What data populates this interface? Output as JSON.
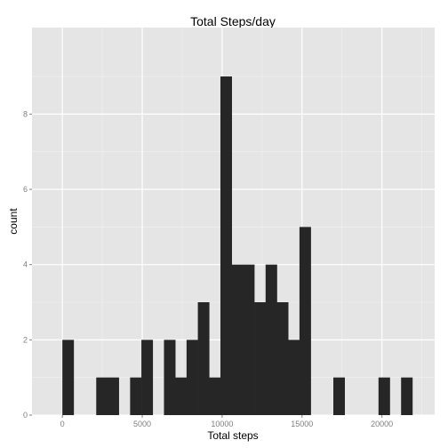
{
  "chart_data": {
    "type": "bar",
    "title": "Total Steps/day",
    "xlabel": "Total steps",
    "ylabel": "count",
    "binwidth": 706.6,
    "bins": [
      {
        "start": 0,
        "count": 2
      },
      {
        "start": 706.6,
        "count": 0
      },
      {
        "start": 1413.2,
        "count": 0
      },
      {
        "start": 2119.8,
        "count": 1
      },
      {
        "start": 2826.4,
        "count": 1
      },
      {
        "start": 3533.0,
        "count": 0
      },
      {
        "start": 4239.6,
        "count": 1
      },
      {
        "start": 4946.2,
        "count": 2
      },
      {
        "start": 5652.8,
        "count": 0
      },
      {
        "start": 6359.4,
        "count": 2
      },
      {
        "start": 7066.0,
        "count": 1
      },
      {
        "start": 7772.6,
        "count": 2
      },
      {
        "start": 8479.2,
        "count": 3
      },
      {
        "start": 9185.8,
        "count": 1
      },
      {
        "start": 9892.4,
        "count": 9
      },
      {
        "start": 10599.0,
        "count": 4
      },
      {
        "start": 11305.6,
        "count": 4
      },
      {
        "start": 12012.2,
        "count": 3
      },
      {
        "start": 12718.8,
        "count": 4
      },
      {
        "start": 13425.4,
        "count": 3
      },
      {
        "start": 14132.0,
        "count": 2
      },
      {
        "start": 14838.6,
        "count": 5
      },
      {
        "start": 15545.2,
        "count": 0
      },
      {
        "start": 16251.8,
        "count": 0
      },
      {
        "start": 16958.4,
        "count": 1
      },
      {
        "start": 17665.0,
        "count": 0
      },
      {
        "start": 18371.6,
        "count": 0
      },
      {
        "start": 19078.2,
        "count": 0
      },
      {
        "start": 19784.8,
        "count": 1
      },
      {
        "start": 20491.4,
        "count": 0
      },
      {
        "start": 21198.0,
        "count": 1
      }
    ],
    "xlim": [
      -1900,
      23300
    ],
    "ylim": [
      0,
      10.3
    ],
    "xticks": [
      0,
      5000,
      10000,
      15000,
      20000
    ],
    "yticks": [
      0,
      2,
      4,
      6,
      8
    ],
    "grid": true,
    "colors": {
      "panel": "#e5e5e5",
      "gridMajor": "#ffffff",
      "gridMinor": "#f2f2f2",
      "bar": "#262626",
      "tickText": "#7f7f7f"
    }
  }
}
